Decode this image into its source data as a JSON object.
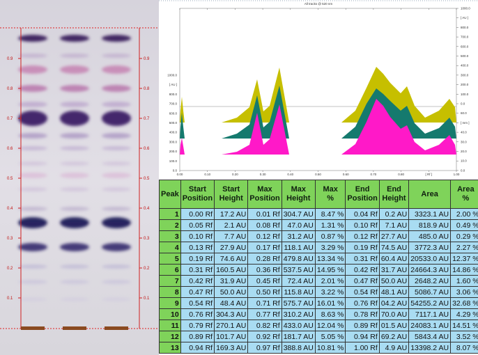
{
  "plate": {
    "rf_labels": [
      "0.9",
      "0.8",
      "0.7",
      "0.6",
      "0.5",
      "0.4",
      "0.3",
      "0.2",
      "0.1"
    ]
  },
  "densitogram": {
    "title": "All tracks @ 520 nm",
    "x_labels": [
      "0.00",
      "0.10",
      "0.20",
      "0.30",
      "0.40",
      "0.50",
      "0.60",
      "0.70",
      "0.80",
      "[ Rf ]",
      "1.00"
    ],
    "left_labels": [
      "1000.0",
      "[ AU ]",
      "800.0",
      "700.0",
      "600.0",
      "500.0",
      "400.0",
      "300.0",
      "200.0",
      "100.0",
      "0.0"
    ],
    "right_labels": [
      "1000.0",
      "[ AU ]",
      "800.0",
      "700.0",
      "600.0",
      "500.0",
      "400.0",
      "300.0",
      "200.0",
      "100.0",
      "0.0",
      "60.0",
      "[ mm ]",
      "40.0",
      "30.0",
      "20.0",
      "10.0",
      "0.0"
    ]
  },
  "table": {
    "headers": [
      [
        "Peak"
      ],
      [
        "Start",
        "Position"
      ],
      [
        "Start",
        "Height"
      ],
      [
        "Max",
        "Position"
      ],
      [
        "Max",
        "Height"
      ],
      [
        "Max",
        "%"
      ],
      [
        "End",
        "Position"
      ],
      [
        "End",
        "Height"
      ],
      [
        "Area"
      ],
      [
        "Area",
        "%"
      ]
    ],
    "rows": [
      [
        "1",
        "0.00 Rf",
        "17.2 AU",
        "0.01 Rf",
        "304.7 AU",
        "8.47 %",
        "0.04 Rf",
        "0.2 AU",
        "3323.1 AU",
        "2.00 %"
      ],
      [
        "2",
        "0.05 Rf",
        "2.1 AU",
        "0.08 Rf",
        "47.0 AU",
        "1.31 %",
        "0.10 Rf",
        "7.1 AU",
        "818.9 AU",
        "0.49 %"
      ],
      [
        "3",
        "0.10 Rf",
        "7.7 AU",
        "0.12 Rf",
        "31.2 AU",
        "0.87 %",
        "0.12 Rf",
        "27.7 AU",
        "485.0 AU",
        "0.29 %"
      ],
      [
        "4",
        "0.13 Rf",
        "27.9 AU",
        "0.17 Rf",
        "118.1 AU",
        "3.29 %",
        "0.19 Rf",
        "74.5 AU",
        "3772.3 AU",
        "2.27 %"
      ],
      [
        "5",
        "0.19 Rf",
        "74.6 AU",
        "0.28 Rf",
        "479.8 AU",
        "13.34 %",
        "0.31 Rf",
        "60.4 AU",
        "20533.0 AU",
        "12.37 %"
      ],
      [
        "6",
        "0.31 Rf",
        "160.5 AU",
        "0.36 Rf",
        "537.5 AU",
        "14.95 %",
        "0.42 Rf",
        "31.7 AU",
        "24664.3 AU",
        "14.86 %"
      ],
      [
        "7",
        "0.42 Rf",
        "31.9 AU",
        "0.45 Rf",
        "72.4 AU",
        "2.01 %",
        "0.47 Rf",
        "50.0 AU",
        "2648.2 AU",
        "1.60 %"
      ],
      [
        "8",
        "0.47 Rf",
        "50.0 AU",
        "0.50 Rf",
        "115.8 AU",
        "3.22 %",
        "0.54 Rf",
        "48.1 AU",
        "5086.7 AU",
        "3.06 %"
      ],
      [
        "9",
        "0.54 Rf",
        "48.4 AU",
        "0.71 Rf",
        "575.7 AU",
        "16.01 %",
        "0.76 Rf",
        "04.2 AU",
        "54255.2 AU",
        "32.68 %"
      ],
      [
        "10",
        "0.76 Rf",
        "304.3 AU",
        "0.77 Rf",
        "310.2 AU",
        "8.63 %",
        "0.78 Rf",
        "70.0 AU",
        "7117.1 AU",
        "4.29 %"
      ],
      [
        "11",
        "0.79 Rf",
        "270.1 AU",
        "0.82 Rf",
        "433.0 AU",
        "12.04 %",
        "0.89 Rf",
        "01.5 AU",
        "24083.1 AU",
        "14.51 %"
      ],
      [
        "12",
        "0.89 Rf",
        "101.7 AU",
        "0.92 Rf",
        "181.7 AU",
        "5.05 %",
        "0.94 Rf",
        "69.2 AU",
        "5843.4 AU",
        "3.52 %"
      ],
      [
        "13",
        "0.94 Rf",
        "169.3 AU",
        "0.97 Rf",
        "388.8 AU",
        "10.81 %",
        "1.00 Rf",
        "4.9 AU",
        "13398.2 AU",
        "8.07 %"
      ]
    ]
  }
}
